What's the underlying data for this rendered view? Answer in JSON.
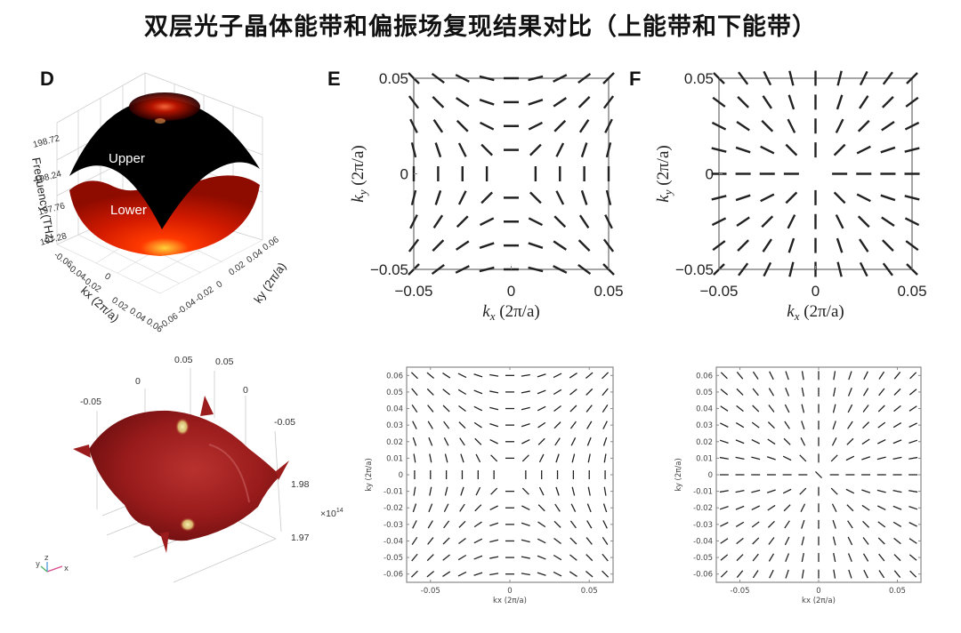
{
  "title": "双层光子晶体能带和偏振场复现结果对比（上能带和下能带）",
  "panels": {
    "D": {
      "letter": "D"
    },
    "E": {
      "letter": "E"
    },
    "F": {
      "letter": "F"
    }
  },
  "chart_data": [
    {
      "id": "D-top",
      "type": "surface3d",
      "title": "",
      "xlabel": "kx (2π/a)",
      "ylabel": "ky (2π/a)",
      "zlabel": "Frequency (THz)",
      "x_ticks": [
        "-0.06",
        "-0.04",
        "-0.02",
        "0",
        "0.02",
        "0.04",
        "0.06"
      ],
      "y_ticks": [
        "-0.06",
        "-0.04",
        "-0.02",
        "0",
        "0.02",
        "0.04",
        "0.06"
      ],
      "z_ticks": [
        "197.28",
        "197.76",
        "198.24",
        "198.72"
      ],
      "series": [
        {
          "name": "Upper",
          "color": "#000000"
        },
        {
          "name": "Lower",
          "color": "#cc1a00"
        }
      ]
    },
    {
      "id": "D-bottom",
      "type": "surface3d",
      "x_ticks": [
        "-0.05",
        "0",
        "0.05"
      ],
      "y_ticks": [
        "0.05",
        "0",
        "-0.05"
      ],
      "z_ticks": [
        "1.97",
        "1.98"
      ],
      "z_multiplier": "×10¹⁴",
      "axis_triad": [
        "y",
        "z",
        "x"
      ],
      "surface_color": "#9b1c1c"
    },
    {
      "id": "E-top",
      "type": "polarization-field",
      "pattern": "hyperbolic (θ = 90° − φ)",
      "xlabel": "kx (2π/a)",
      "ylabel": "ky (2π/a)",
      "xlim": [
        -0.05,
        0.05
      ],
      "ylim": [
        -0.05,
        0.05
      ],
      "x_ticks": [
        "−0.05",
        "0",
        "0.05"
      ],
      "y_ticks": [
        "0.05",
        "0",
        "−0.05"
      ],
      "grid": "9x9"
    },
    {
      "id": "F-top",
      "type": "polarization-field",
      "pattern": "radial (θ = φ)",
      "xlabel": "kx (2π/a)",
      "ylabel": "ky (2π/a)",
      "xlim": [
        -0.05,
        0.05
      ],
      "ylim": [
        -0.05,
        0.05
      ],
      "x_ticks": [
        "−0.05",
        "0",
        "0.05"
      ],
      "y_ticks": [
        "0.05",
        "0",
        "−0.05"
      ],
      "grid": "9x9"
    },
    {
      "id": "E-bottom",
      "type": "polarization-field",
      "pattern": "hyperbolic (θ = 90° − φ)",
      "xlabel": "kx (2π/a)",
      "ylabel": "ky (2π/a)",
      "xlim": [
        -0.065,
        0.065
      ],
      "ylim": [
        -0.065,
        0.065
      ],
      "x_ticks": [
        "-0.05",
        "0",
        "0.05"
      ],
      "y_ticks": [
        "0.06",
        "0.05",
        "0.04",
        "0.03",
        "0.02",
        "0.01",
        "0",
        "-0.01",
        "-0.02",
        "-0.03",
        "-0.04",
        "-0.05",
        "-0.06"
      ],
      "grid": "13x13"
    },
    {
      "id": "F-bottom",
      "type": "polarization-field",
      "pattern": "radial (θ = φ)",
      "xlabel": "kx (2π/a)",
      "ylabel": "ky (2π/a)",
      "xlim": [
        -0.065,
        0.065
      ],
      "ylim": [
        -0.065,
        0.065
      ],
      "x_ticks": [
        "-0.05",
        "0",
        "0.05"
      ],
      "y_ticks": [
        "0.06",
        "0.05",
        "0.04",
        "0.03",
        "0.02",
        "0.01",
        "0",
        "-0.01",
        "-0.02",
        "-0.03",
        "-0.04",
        "-0.05",
        "-0.06"
      ],
      "grid": "13x13"
    }
  ],
  "labels": {
    "upper": "Upper",
    "lower": "Lower",
    "d_zlabel": "Frequency (THz)",
    "d_xlabel": "kx (2π/a)",
    "d_ylabel": "ky (2π/a)",
    "kx_serif": "(2π/a)",
    "small_x": "kx (2π/a)",
    "small_y": "ky (2π/a)",
    "multiplier": "×10",
    "multiplier_exp": "14"
  }
}
